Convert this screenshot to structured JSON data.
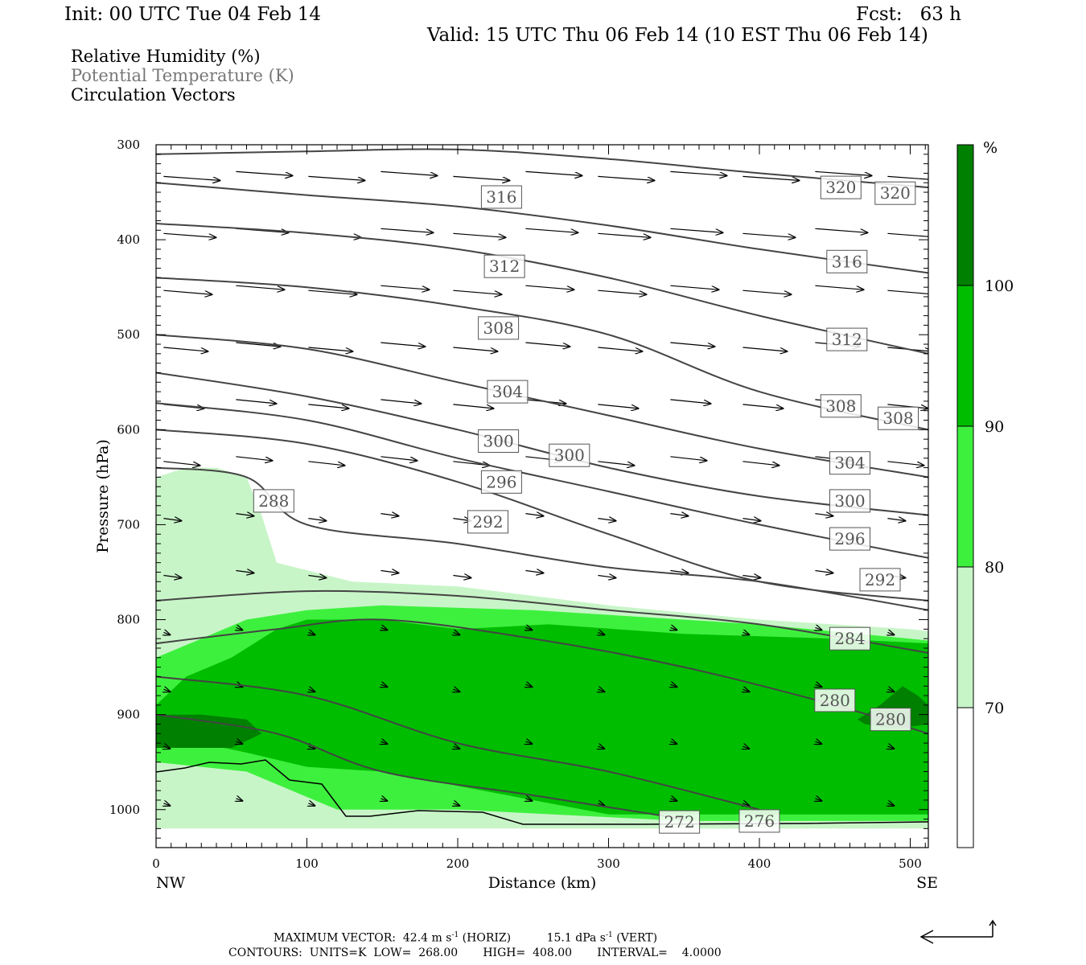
{
  "header": {
    "init": "Init: 00 UTC Tue 04 Feb 14",
    "fcst": "Fcst:   63 h",
    "valid": "Valid: 15 UTC Thu 06 Feb 14 (10 EST Thu 06 Feb 14)"
  },
  "legend": {
    "rh": "Relative Humidity (%)",
    "theta": "Potential Temperature (K)",
    "vectors": "Circulation Vectors"
  },
  "colors": {
    "rh70": "#c8f5c8",
    "rh80": "#3ef03e",
    "rh90": "#00bd00",
    "rh100": "#008000",
    "contour": "#444444"
  },
  "footer": {
    "max_vector_label": "MAXIMUM VECTOR:",
    "horiz_value": "42.4 m s",
    "horiz_unit": "(HORIZ)",
    "vert_value": "15.1 dPa s",
    "vert_unit": "(VERT)",
    "exponent": "-1",
    "contours": "CONTOURS:  UNITS=K  LOW=  268.00       HIGH=  408.00       INTERVAL=    4.0000"
  },
  "chart_data": {
    "type": "cross-section",
    "xlabel": "Distance (km)",
    "ylabel": "Pressure (hPa)",
    "xlim": [
      0,
      512
    ],
    "ylim": [
      1040,
      300
    ],
    "x_ticks": [
      "0",
      "100",
      "200",
      "300",
      "400",
      "500"
    ],
    "x_end_labels": {
      "left": "NW",
      "right": "SE"
    },
    "y_ticks": [
      "300",
      "400",
      "500",
      "600",
      "700",
      "800",
      "900",
      "1000"
    ],
    "colorbar": {
      "unit": "%",
      "levels": [
        "70",
        "80",
        "90",
        "100"
      ]
    },
    "rh_regions": [
      {
        "level": 70,
        "points": [
          [
            0,
            650
          ],
          [
            20,
            640
          ],
          [
            40,
            640
          ],
          [
            60,
            650
          ],
          [
            70,
            690
          ],
          [
            80,
            740
          ],
          [
            130,
            760
          ],
          [
            200,
            765
          ],
          [
            250,
            775
          ],
          [
            300,
            785
          ],
          [
            400,
            800
          ],
          [
            500,
            810
          ],
          [
            512,
            812
          ],
          [
            512,
            1020
          ],
          [
            0,
            1020
          ],
          [
            0,
            830
          ]
        ]
      },
      {
        "level": 80,
        "points": [
          [
            0,
            840
          ],
          [
            30,
            820
          ],
          [
            60,
            800
          ],
          [
            100,
            790
          ],
          [
            150,
            785
          ],
          [
            250,
            790
          ],
          [
            400,
            805
          ],
          [
            500,
            820
          ],
          [
            512,
            822
          ],
          [
            512,
            1012
          ],
          [
            350,
            1012
          ],
          [
            200,
            1000
          ],
          [
            120,
            1000
          ],
          [
            60,
            960
          ],
          [
            0,
            950
          ]
        ]
      },
      {
        "level": 90,
        "points": [
          [
            0,
            890
          ],
          [
            20,
            860
          ],
          [
            50,
            840
          ],
          [
            80,
            810
          ],
          [
            100,
            800
          ],
          [
            150,
            800
          ],
          [
            200,
            810
          ],
          [
            260,
            805
          ],
          [
            350,
            815
          ],
          [
            450,
            820
          ],
          [
            512,
            825
          ],
          [
            512,
            1005
          ],
          [
            300,
            1005
          ],
          [
            200,
            975
          ],
          [
            150,
            960
          ],
          [
            100,
            955
          ],
          [
            60,
            940
          ],
          [
            0,
            920
          ]
        ]
      },
      {
        "level": 100,
        "points": [
          [
            465,
            905
          ],
          [
            480,
            890
          ],
          [
            495,
            870
          ],
          [
            505,
            880
          ],
          [
            512,
            890
          ],
          [
            512,
            910
          ],
          [
            490,
            915
          ],
          [
            470,
            910
          ]
        ]
      },
      {
        "level": 100,
        "points": [
          [
            0,
            900
          ],
          [
            30,
            900
          ],
          [
            60,
            905
          ],
          [
            70,
            920
          ],
          [
            50,
            935
          ],
          [
            0,
            935
          ]
        ]
      }
    ],
    "theta_contours": [
      {
        "value": 320,
        "points": [
          [
            0,
            310
          ],
          [
            100,
            307
          ],
          [
            200,
            305
          ],
          [
            300,
            315
          ],
          [
            400,
            330
          ],
          [
            512,
            345
          ]
        ]
      },
      {
        "value": 316,
        "points": [
          [
            0,
            340
          ],
          [
            100,
            353
          ],
          [
            200,
            365
          ],
          [
            300,
            385
          ],
          [
            400,
            410
          ],
          [
            512,
            435
          ]
        ]
      },
      {
        "value": 312,
        "points": [
          [
            0,
            383
          ],
          [
            100,
            393
          ],
          [
            200,
            410
          ],
          [
            300,
            440
          ],
          [
            400,
            480
          ],
          [
            512,
            520
          ]
        ]
      },
      {
        "value": 308,
        "points": [
          [
            0,
            440
          ],
          [
            100,
            450
          ],
          [
            200,
            470
          ],
          [
            300,
            500
          ],
          [
            400,
            560
          ],
          [
            512,
            600
          ]
        ]
      },
      {
        "value": 304,
        "points": [
          [
            0,
            500
          ],
          [
            100,
            515
          ],
          [
            200,
            550
          ],
          [
            300,
            585
          ],
          [
            400,
            620
          ],
          [
            512,
            650
          ]
        ]
      },
      {
        "value": 300,
        "points": [
          [
            0,
            540
          ],
          [
            100,
            565
          ],
          [
            200,
            600
          ],
          [
            300,
            640
          ],
          [
            400,
            670
          ],
          [
            512,
            690
          ]
        ]
      },
      {
        "value": 296,
        "points": [
          [
            0,
            572
          ],
          [
            100,
            590
          ],
          [
            200,
            630
          ],
          [
            300,
            665
          ],
          [
            400,
            700
          ],
          [
            512,
            735
          ]
        ]
      },
      {
        "value": 292,
        "points": [
          [
            0,
            600
          ],
          [
            100,
            615
          ],
          [
            200,
            655
          ],
          [
            300,
            710
          ],
          [
            400,
            760
          ],
          [
            512,
            780
          ]
        ]
      },
      {
        "value": 288,
        "points": [
          [
            0,
            640
          ],
          [
            60,
            650
          ],
          [
            100,
            700
          ],
          [
            200,
            720
          ],
          [
            300,
            745
          ],
          [
            400,
            760
          ],
          [
            512,
            790
          ]
        ]
      },
      {
        "value": 284,
        "points": [
          [
            0,
            780
          ],
          [
            100,
            770
          ],
          [
            200,
            775
          ],
          [
            300,
            790
          ],
          [
            400,
            805
          ],
          [
            512,
            835
          ]
        ]
      },
      {
        "value": 280,
        "points": [
          [
            0,
            825
          ],
          [
            80,
            810
          ],
          [
            150,
            800
          ],
          [
            250,
            820
          ],
          [
            350,
            850
          ],
          [
            450,
            890
          ],
          [
            512,
            920
          ]
        ]
      },
      {
        "value": 276,
        "points": [
          [
            0,
            860
          ],
          [
            100,
            880
          ],
          [
            200,
            930
          ],
          [
            300,
            960
          ],
          [
            400,
            1000
          ]
        ]
      },
      {
        "value": 272,
        "points": [
          [
            0,
            900
          ],
          [
            80,
            920
          ],
          [
            150,
            960
          ],
          [
            250,
            985
          ],
          [
            350,
            1010
          ]
        ]
      }
    ],
    "contour_labels": [
      {
        "text": "316",
        "x": 229,
        "y": 355
      },
      {
        "text": "320",
        "x": 454,
        "y": 345
      },
      {
        "text": "320",
        "x": 490,
        "y": 351
      },
      {
        "text": "312",
        "x": 231,
        "y": 428
      },
      {
        "text": "316",
        "x": 458,
        "y": 423
      },
      {
        "text": "308",
        "x": 227,
        "y": 493
      },
      {
        "text": "312",
        "x": 458,
        "y": 505
      },
      {
        "text": "304",
        "x": 233,
        "y": 560
      },
      {
        "text": "308",
        "x": 454,
        "y": 575
      },
      {
        "text": "308",
        "x": 492,
        "y": 588
      },
      {
        "text": "300",
        "x": 227,
        "y": 612
      },
      {
        "text": "300",
        "x": 274,
        "y": 627
      },
      {
        "text": "304",
        "x": 460,
        "y": 635
      },
      {
        "text": "296",
        "x": 229,
        "y": 655
      },
      {
        "text": "288",
        "x": 78,
        "y": 675
      },
      {
        "text": "300",
        "x": 460,
        "y": 675
      },
      {
        "text": "292",
        "x": 220,
        "y": 697
      },
      {
        "text": "296",
        "x": 460,
        "y": 715
      },
      {
        "text": "292",
        "x": 480,
        "y": 758
      },
      {
        "text": "284",
        "x": 460,
        "y": 820
      },
      {
        "text": "280",
        "x": 450,
        "y": 885
      },
      {
        "text": "280",
        "x": 487,
        "y": 905
      },
      {
        "text": "272",
        "x": 347,
        "y": 1013
      },
      {
        "text": "276",
        "x": 400,
        "y": 1012
      }
    ]
  }
}
